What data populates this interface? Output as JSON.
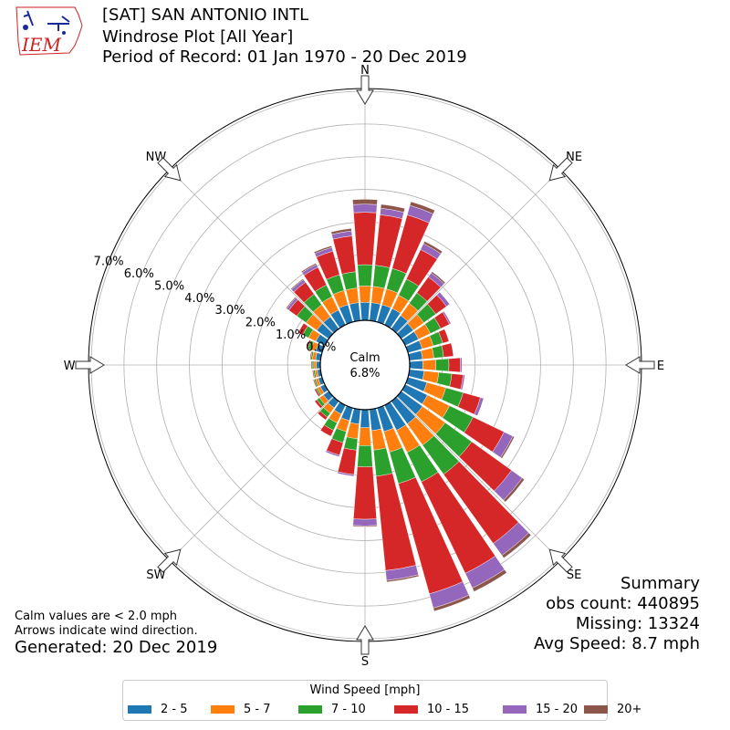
{
  "header": {
    "station_line": "[SAT] SAN ANTONIO INTL",
    "plot_line": "Windrose Plot [All Year]",
    "period_line": "Period of Record: 01 Jan 1970 - 20 Dec 2019",
    "logo_text": "IEM"
  },
  "notes": {
    "calm_note": "Calm values are < 2.0 mph",
    "arrow_note": "Arrows indicate wind direction.",
    "generated": "Generated: 20 Dec 2019"
  },
  "summary": {
    "heading": "Summary",
    "obs_count": "obs count: 440895",
    "missing": "Missing: 13324",
    "avg_speed": "Avg Speed: 8.7 mph"
  },
  "chart_data": {
    "type": "windrose",
    "calm_label": "Calm",
    "calm_value": "6.8%",
    "direction_labels": [
      "N",
      "NE",
      "E",
      "SE",
      "S",
      "SW",
      "W",
      "NW"
    ],
    "radial_labels": [
      "0.0%",
      "1.0%",
      "2.0%",
      "3.0%",
      "4.0%",
      "5.0%",
      "6.0%",
      "7.0%"
    ],
    "radial_max": 7,
    "legend_title": "Wind Speed [mph]",
    "bins": [
      "2 - 5",
      "5 - 7",
      "7 - 10",
      "10 - 15",
      "15 - 20",
      "20+"
    ],
    "bin_colors": [
      "#1f77b4",
      "#ff7f0e",
      "#2ca02c",
      "#d62728",
      "#9467bd",
      "#8c564b"
    ],
    "directions_deg": [
      0,
      10,
      20,
      30,
      40,
      50,
      60,
      70,
      80,
      90,
      100,
      110,
      120,
      130,
      140,
      150,
      160,
      170,
      180,
      190,
      200,
      210,
      220,
      230,
      240,
      250,
      260,
      270,
      280,
      290,
      300,
      310,
      320,
      330,
      340,
      350
    ],
    "values": [
      [
        0.55,
        0.5,
        0.65,
        1.6,
        0.25,
        0.15
      ],
      [
        0.55,
        0.5,
        0.65,
        1.55,
        0.2,
        0.12
      ],
      [
        0.55,
        0.5,
        0.65,
        1.7,
        0.3,
        0.12
      ],
      [
        0.55,
        0.45,
        0.55,
        1.0,
        0.2,
        0.08
      ],
      [
        0.5,
        0.45,
        0.4,
        0.6,
        0.15,
        0.05
      ],
      [
        0.45,
        0.4,
        0.45,
        0.4,
        0.12,
        0.0
      ],
      [
        0.45,
        0.4,
        0.35,
        0.3,
        0.05,
        0.0
      ],
      [
        0.45,
        0.35,
        0.3,
        0.2,
        0.0,
        0.0
      ],
      [
        0.4,
        0.35,
        0.3,
        0.3,
        0.0,
        0.0
      ],
      [
        0.4,
        0.4,
        0.4,
        0.35,
        0.05,
        0.0
      ],
      [
        0.45,
        0.45,
        0.4,
        0.35,
        0.05,
        0.0
      ],
      [
        0.6,
        0.6,
        0.55,
        0.55,
        0.1,
        0.0
      ],
      [
        0.75,
        0.75,
        0.8,
        1.05,
        0.3,
        0.05
      ],
      [
        0.8,
        0.85,
        1.0,
        1.5,
        0.4,
        0.08
      ],
      [
        0.85,
        0.8,
        1.1,
        2.6,
        0.45,
        0.1
      ],
      [
        0.85,
        0.75,
        1.0,
        3.1,
        0.5,
        0.12
      ],
      [
        0.75,
        0.65,
        1.0,
        3.5,
        0.45,
        0.1
      ],
      [
        0.65,
        0.6,
        0.8,
        2.9,
        0.3,
        0.05
      ],
      [
        0.55,
        0.55,
        0.65,
        1.6,
        0.2,
        0.03
      ],
      [
        0.45,
        0.45,
        0.35,
        0.75,
        0.05,
        0.0
      ],
      [
        0.4,
        0.35,
        0.35,
        0.4,
        0.05,
        0.0
      ],
      [
        0.3,
        0.3,
        0.25,
        0.2,
        0.0,
        0.0
      ],
      [
        0.25,
        0.2,
        0.15,
        0.1,
        0.0,
        0.0
      ],
      [
        0.2,
        0.15,
        0.1,
        0.08,
        0.0,
        0.0
      ],
      [
        0.15,
        0.1,
        0.05,
        0.05,
        0.0,
        0.0
      ],
      [
        0.12,
        0.08,
        0.05,
        0.03,
        0.0,
        0.0
      ],
      [
        0.1,
        0.07,
        0.05,
        0.03,
        0.0,
        0.0
      ],
      [
        0.12,
        0.08,
        0.05,
        0.03,
        0.0,
        0.0
      ],
      [
        0.15,
        0.1,
        0.05,
        0.03,
        0.0,
        0.0
      ],
      [
        0.2,
        0.15,
        0.1,
        0.05,
        0.0,
        0.0
      ],
      [
        0.3,
        0.25,
        0.2,
        0.15,
        0.0,
        0.0
      ],
      [
        0.45,
        0.4,
        0.35,
        0.3,
        0.08,
        0.03
      ],
      [
        0.45,
        0.45,
        0.4,
        0.45,
        0.1,
        0.03
      ],
      [
        0.5,
        0.45,
        0.4,
        0.6,
        0.1,
        0.04
      ],
      [
        0.55,
        0.45,
        0.5,
        0.75,
        0.12,
        0.05
      ],
      [
        0.55,
        0.45,
        0.5,
        1.1,
        0.15,
        0.08
      ]
    ]
  }
}
